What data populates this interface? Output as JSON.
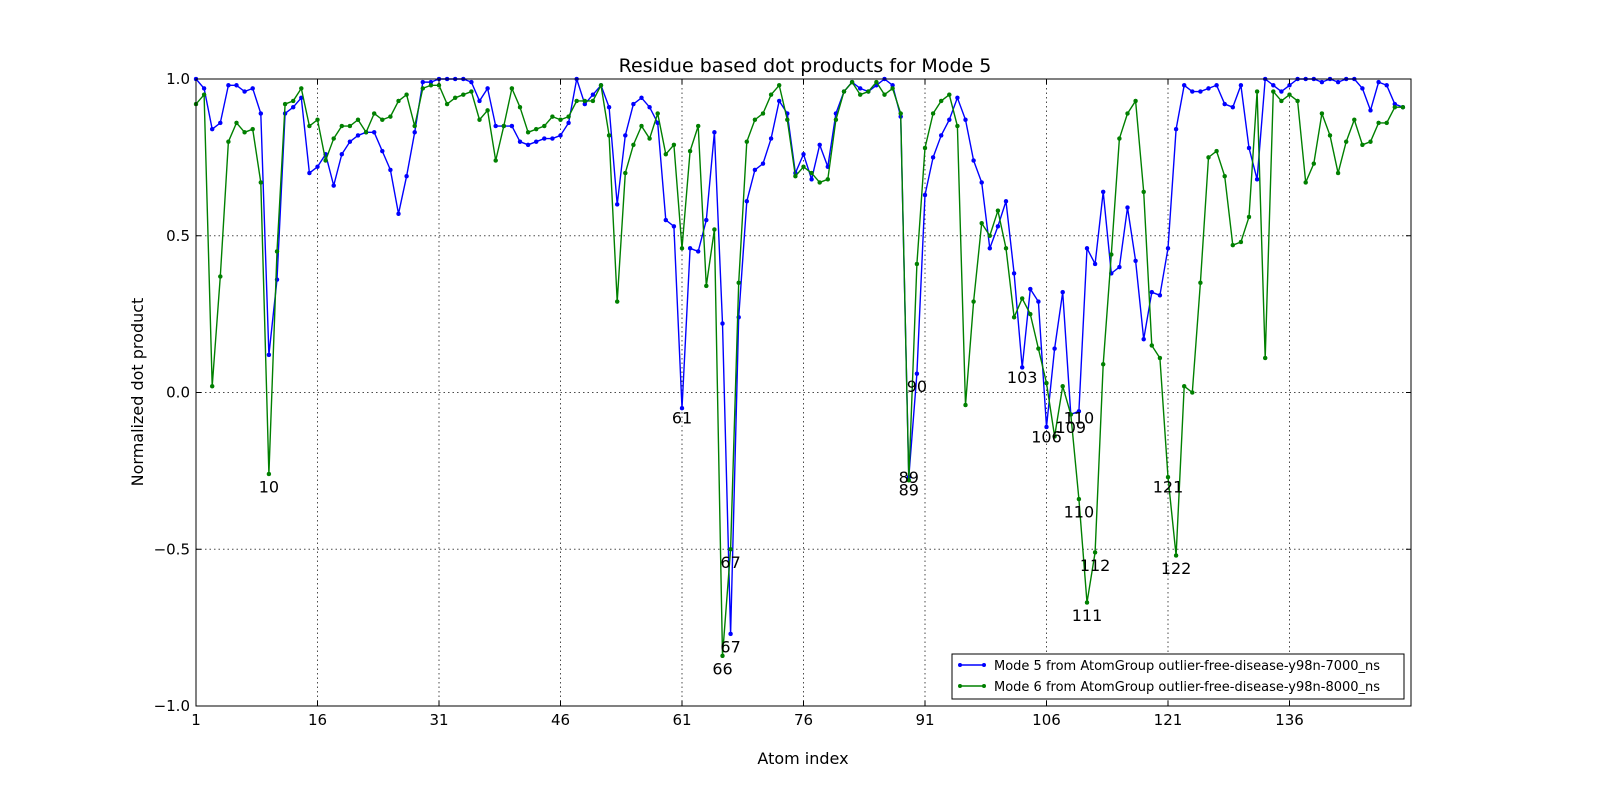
{
  "chart_data": {
    "type": "line",
    "title": "Residue based dot products for Mode 5",
    "xlabel": "Atom index",
    "ylabel": "Normalized dot product",
    "xlim": [
      1,
      151
    ],
    "ylim": [
      -1.0,
      1.0
    ],
    "xticks": [
      1,
      16,
      31,
      46,
      61,
      76,
      91,
      106,
      121,
      136
    ],
    "xtick_labels": [
      "1",
      "16",
      "31",
      "46",
      "61",
      "76",
      "91",
      "106",
      "121",
      "136"
    ],
    "yticks": [
      -1.0,
      -0.5,
      0.0,
      0.5,
      1.0
    ],
    "ytick_labels": [
      "−1.0",
      "−0.5",
      "0.0",
      "0.5",
      "1.0"
    ],
    "grid": true,
    "legend_position": "lower-right",
    "series": [
      {
        "name": "Mode 5 from AtomGroup outlier-free-disease-y98n-7000_ns",
        "color": "#0000ff",
        "x_start": 1,
        "values": [
          1.0,
          0.97,
          0.84,
          0.86,
          0.98,
          0.98,
          0.96,
          0.97,
          0.89,
          0.12,
          0.36,
          0.89,
          0.91,
          0.94,
          0.7,
          0.72,
          0.76,
          0.66,
          0.76,
          0.8,
          0.82,
          0.83,
          0.83,
          0.77,
          0.71,
          0.57,
          0.69,
          0.83,
          0.99,
          0.99,
          1.0,
          1.0,
          1.0,
          1.0,
          0.99,
          0.93,
          0.97,
          0.85,
          0.85,
          0.85,
          0.8,
          0.79,
          0.8,
          0.81,
          0.81,
          0.82,
          0.86,
          1.0,
          0.92,
          0.95,
          0.98,
          0.91,
          0.6,
          0.82,
          0.92,
          0.94,
          0.91,
          0.86,
          0.55,
          0.53,
          -0.05,
          0.46,
          0.45,
          0.55,
          0.83,
          0.22,
          -0.77,
          0.24,
          0.61,
          0.71,
          0.73,
          0.81,
          0.93,
          0.89,
          0.7,
          0.76,
          0.68,
          0.79,
          0.72,
          0.89,
          0.96,
          0.99,
          0.97,
          0.96,
          0.98,
          1.0,
          0.98,
          0.88,
          -0.27,
          0.06,
          0.63,
          0.75,
          0.82,
          0.87,
          0.94,
          0.87,
          0.74,
          0.67,
          0.46,
          0.53,
          0.61,
          0.38,
          0.08,
          0.33,
          0.29,
          -0.11,
          0.14,
          0.32,
          -0.07,
          -0.06,
          0.46,
          0.41,
          0.64,
          0.38,
          0.4,
          0.59,
          0.42,
          0.17,
          0.32,
          0.31,
          0.46,
          0.84,
          0.98,
          0.96,
          0.96,
          0.97,
          0.98,
          0.92,
          0.91,
          0.98,
          0.78,
          0.68,
          1.0,
          0.98,
          0.96,
          0.98,
          1.0,
          1.0,
          1.0,
          0.99,
          1.0,
          0.99,
          1.0,
          1.0,
          0.97,
          0.9,
          0.99,
          0.98,
          0.92,
          0.91
        ]
      },
      {
        "name": "Mode 6 from AtomGroup outlier-free-disease-y98n-8000_ns",
        "color": "#008000",
        "x_start": 1,
        "values": [
          0.92,
          0.95,
          0.02,
          0.37,
          0.8,
          0.86,
          0.83,
          0.84,
          0.67,
          -0.26,
          0.45,
          0.92,
          0.93,
          0.97,
          0.85,
          0.87,
          0.74,
          0.81,
          0.85,
          0.85,
          0.87,
          0.83,
          0.89,
          0.87,
          0.88,
          0.93,
          0.95,
          0.85,
          0.97,
          0.98,
          0.98,
          0.92,
          0.94,
          0.95,
          0.96,
          0.87,
          0.9,
          0.74,
          0.85,
          0.97,
          0.91,
          0.83,
          0.84,
          0.85,
          0.88,
          0.87,
          0.88,
          0.93,
          0.93,
          0.93,
          0.98,
          0.82,
          0.29,
          0.7,
          0.79,
          0.85,
          0.81,
          0.89,
          0.76,
          0.79,
          0.46,
          0.77,
          0.85,
          0.34,
          0.52,
          -0.84,
          -0.5,
          0.35,
          0.8,
          0.87,
          0.89,
          0.95,
          0.98,
          0.87,
          0.69,
          0.72,
          0.7,
          0.67,
          0.68,
          0.87,
          0.96,
          0.99,
          0.95,
          0.96,
          0.99,
          0.95,
          0.97,
          0.89,
          -0.28,
          0.41,
          0.78,
          0.89,
          0.93,
          0.95,
          0.85,
          -0.04,
          0.29,
          0.54,
          0.5,
          0.58,
          0.46,
          0.24,
          0.3,
          0.25,
          0.14,
          0.03,
          -0.14,
          0.02,
          -0.07,
          -0.34,
          -0.67,
          -0.51,
          0.09,
          0.44,
          0.81,
          0.89,
          0.93,
          0.64,
          0.15,
          0.11,
          -0.27,
          -0.52,
          0.02,
          0.0,
          0.35,
          0.75,
          0.77,
          0.69,
          0.47,
          0.48,
          0.56,
          0.96,
          0.11,
          0.96,
          0.93,
          0.95,
          0.93,
          0.67,
          0.73,
          0.89,
          0.82,
          0.7,
          0.8,
          0.87,
          0.79,
          0.8,
          0.86,
          0.86,
          0.91,
          0.91
        ]
      }
    ],
    "annotations": [
      {
        "text": "10",
        "x": 10,
        "y": -0.3
      },
      {
        "text": "61",
        "x": 61,
        "y": -0.08
      },
      {
        "text": "67",
        "x": 67,
        "y": -0.54
      },
      {
        "text": "67",
        "x": 67,
        "y": -0.81
      },
      {
        "text": "66",
        "x": 66,
        "y": -0.88
      },
      {
        "text": "89",
        "x": 89,
        "y": -0.27
      },
      {
        "text": "89",
        "x": 89,
        "y": -0.31
      },
      {
        "text": "90",
        "x": 90,
        "y": 0.02
      },
      {
        "text": "103",
        "x": 103,
        "y": 0.05
      },
      {
        "text": "106",
        "x": 106,
        "y": -0.14
      },
      {
        "text": "109",
        "x": 109,
        "y": -0.11
      },
      {
        "text": "110",
        "x": 110,
        "y": -0.08
      },
      {
        "text": "110",
        "x": 110,
        "y": -0.38
      },
      {
        "text": "112",
        "x": 112,
        "y": -0.55
      },
      {
        "text": "111",
        "x": 111,
        "y": -0.71
      },
      {
        "text": "121",
        "x": 121,
        "y": -0.3
      },
      {
        "text": "122",
        "x": 122,
        "y": -0.56
      }
    ]
  }
}
